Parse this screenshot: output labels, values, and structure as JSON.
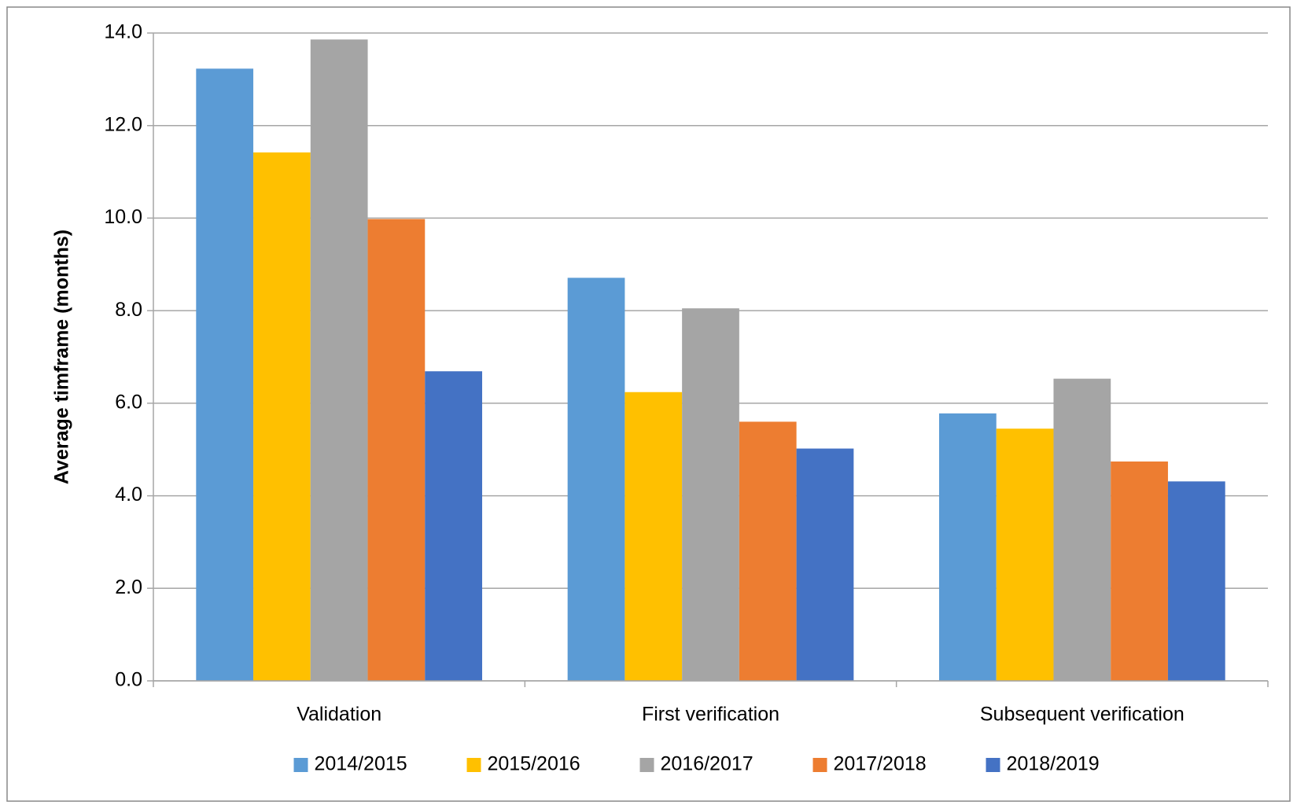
{
  "chart_data": {
    "type": "bar",
    "y_label": "Average timframe (months)",
    "categories": [
      "Validation",
      "First verification",
      "Subsequent verification"
    ],
    "series": [
      {
        "name": "2014/2015",
        "color": "#5b9bd5",
        "values": [
          13.23,
          8.71,
          5.78
        ]
      },
      {
        "name": "2015/2016",
        "color": "#ffc000",
        "values": [
          11.42,
          6.24,
          5.45
        ]
      },
      {
        "name": "2016/2017",
        "color": "#a5a5a5",
        "values": [
          13.86,
          8.05,
          6.53
        ]
      },
      {
        "name": "2017/2018",
        "color": "#ed7d31",
        "values": [
          9.98,
          5.6,
          4.74
        ]
      },
      {
        "name": "2018/2019",
        "color": "#4472c4",
        "values": [
          6.69,
          5.02,
          4.31
        ]
      }
    ],
    "ylim": [
      0,
      14
    ],
    "yticks": [
      {
        "value": 0,
        "label": "0.0"
      },
      {
        "value": 2,
        "label": "2.0"
      },
      {
        "value": 4,
        "label": "4.0"
      },
      {
        "value": 6,
        "label": "6.0"
      },
      {
        "value": 8,
        "label": "8.0"
      },
      {
        "value": 10,
        "label": "10.0"
      },
      {
        "value": 12,
        "label": "12.0"
      },
      {
        "value": 14,
        "label": "14.0"
      }
    ],
    "grid": true,
    "legend": "bottom"
  }
}
